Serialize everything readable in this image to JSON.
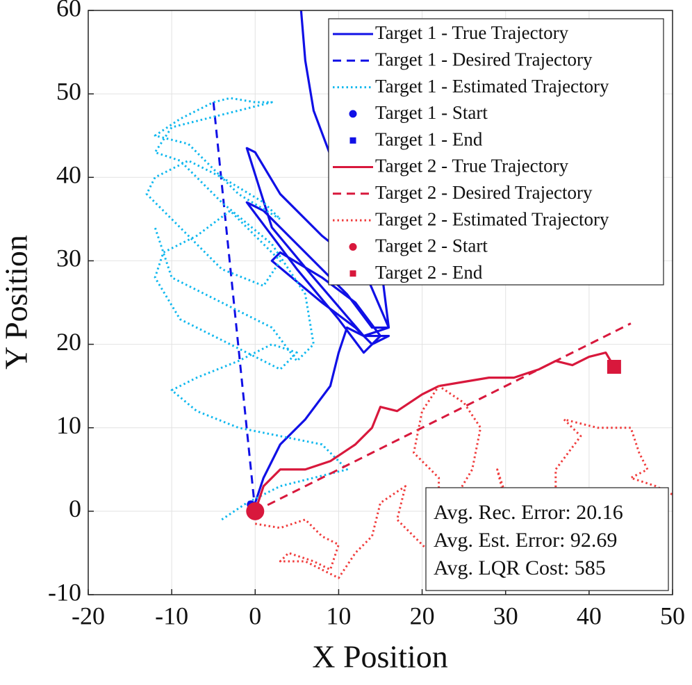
{
  "chart_data": {
    "type": "line",
    "xlabel": "X Position",
    "ylabel": "Y Position",
    "xlim": [
      -20,
      50
    ],
    "ylim": [
      -10,
      60
    ],
    "xticks": [
      -20,
      -10,
      0,
      10,
      20,
      30,
      40,
      50
    ],
    "yticks": [
      -10,
      0,
      10,
      20,
      30,
      40,
      50,
      60
    ],
    "grid": true,
    "legend": "top-right",
    "annotations": [
      "Avg. Rec. Error: 20.16",
      "Avg. Est. Error: 92.69",
      "Avg. LQR Cost: 585"
    ],
    "series": [
      {
        "name": "Target 1 - True Trajectory",
        "color": "#1010e6",
        "linestyle": "solid",
        "x": [
          0,
          1,
          3,
          6,
          9,
          10,
          11,
          13,
          16,
          14,
          12,
          8,
          2,
          3,
          8,
          12,
          15,
          13,
          10,
          5,
          -1,
          1,
          6,
          11,
          14,
          16,
          13,
          7,
          2,
          -1,
          0,
          3,
          8,
          13,
          16,
          15,
          13,
          10,
          7,
          6,
          5.5
        ],
        "values": [
          1,
          4,
          8,
          11,
          15,
          19,
          22,
          21,
          21,
          20,
          22,
          25,
          30,
          31,
          28,
          25,
          21,
          19,
          23,
          29,
          37,
          36,
          31,
          26,
          22,
          22,
          21,
          28,
          34,
          43.5,
          43,
          38,
          33,
          29,
          22,
          30,
          37,
          40,
          48,
          54,
          60
        ]
      },
      {
        "name": "Target 1 - Desired Trajectory",
        "color": "#1010e6",
        "linestyle": "dashed",
        "x": [
          0,
          -5
        ],
        "values": [
          0,
          49
        ]
      },
      {
        "name": "Target 1 - Estimated Trajectory",
        "color": "#10b8ee",
        "linestyle": "dotted",
        "x": [
          -4,
          -1,
          3,
          7,
          11,
          8,
          3,
          -2,
          -7,
          -10,
          -7,
          -2,
          2,
          5,
          3,
          -3,
          -9,
          -12,
          -11,
          -7,
          -3,
          0,
          3,
          1,
          -4,
          -10,
          -13,
          -12,
          -8,
          -4,
          1,
          3,
          -2,
          -8,
          -12,
          -9,
          -5,
          -3,
          0,
          2,
          -2,
          -6,
          -10,
          -12,
          -9,
          -4,
          2,
          6,
          7,
          5,
          2,
          -4,
          -10,
          -12
        ],
        "values": [
          -1,
          1,
          3,
          4,
          5,
          8,
          9,
          10,
          12,
          14.5,
          16,
          18,
          20,
          19,
          17,
          20,
          23,
          28,
          31,
          33,
          36,
          33,
          30,
          27,
          29,
          35,
          38,
          40,
          42,
          40,
          37,
          35,
          38,
          44,
          45,
          47,
          49,
          49.5,
          49,
          49,
          48,
          47,
          46,
          43,
          42,
          37,
          32,
          26,
          20,
          18,
          22,
          25,
          28,
          34
        ]
      },
      {
        "name": "Target 1 - Start",
        "color": "#1010e6",
        "linestyle": "none",
        "marker": "circle",
        "marker_size": 6,
        "x": [
          -0.5
        ],
        "values": [
          0.8
        ]
      },
      {
        "name": "Target 1 - End",
        "color": "#1010e6",
        "linestyle": "none",
        "marker": "square",
        "marker_size": 9,
        "x": [],
        "values": []
      },
      {
        "name": "Target 2 - True Trajectory",
        "color": "#d8183c",
        "linestyle": "solid",
        "x": [
          0,
          1,
          3,
          6,
          9,
          12,
          14,
          15,
          17,
          20,
          22,
          25,
          28,
          31,
          34,
          36,
          38,
          40,
          42,
          43
        ],
        "values": [
          0,
          3,
          5,
          5,
          6,
          8,
          10,
          12.5,
          12,
          14,
          15,
          15.5,
          16,
          16,
          17,
          18,
          17.5,
          18.5,
          19,
          17.3
        ]
      },
      {
        "name": "Target 2 - Desired Trajectory",
        "color": "#d8183c",
        "linestyle": "dashed",
        "x": [
          0,
          45
        ],
        "values": [
          0,
          22.5
        ]
      },
      {
        "name": "Target 2 - Estimated Trajectory",
        "color": "#f03c3c",
        "linestyle": "dotted",
        "x": [
          0,
          3,
          6,
          8,
          10,
          9,
          7,
          4,
          3,
          6,
          10,
          12,
          14,
          15,
          18,
          17,
          19,
          21,
          22,
          22,
          19,
          20,
          22,
          25,
          27,
          26,
          23,
          26,
          30,
          29,
          31,
          34,
          36,
          36,
          39,
          37,
          41,
          45,
          46,
          47,
          45,
          48,
          50
        ],
        "values": [
          -1.5,
          -2,
          -1,
          -3,
          -4,
          -7,
          -6,
          -5,
          -6,
          -6,
          -8,
          -5,
          -3,
          1,
          3,
          -1,
          -3,
          -5,
          -2,
          4,
          7,
          12,
          15,
          13,
          10,
          5,
          0,
          -2,
          1,
          5,
          -1,
          -3,
          -1,
          5,
          9,
          11,
          10,
          10,
          7,
          5,
          4,
          3,
          2
        ]
      },
      {
        "name": "Target 2 - Start",
        "color": "#d8183c",
        "linestyle": "none",
        "marker": "circle",
        "marker_size": 13,
        "x": [
          0
        ],
        "values": [
          0
        ]
      },
      {
        "name": "Target 2 - End",
        "color": "#d8183c",
        "linestyle": "none",
        "marker": "square",
        "marker_size": 20,
        "x": [
          43
        ],
        "values": [
          17.3
        ]
      }
    ]
  }
}
